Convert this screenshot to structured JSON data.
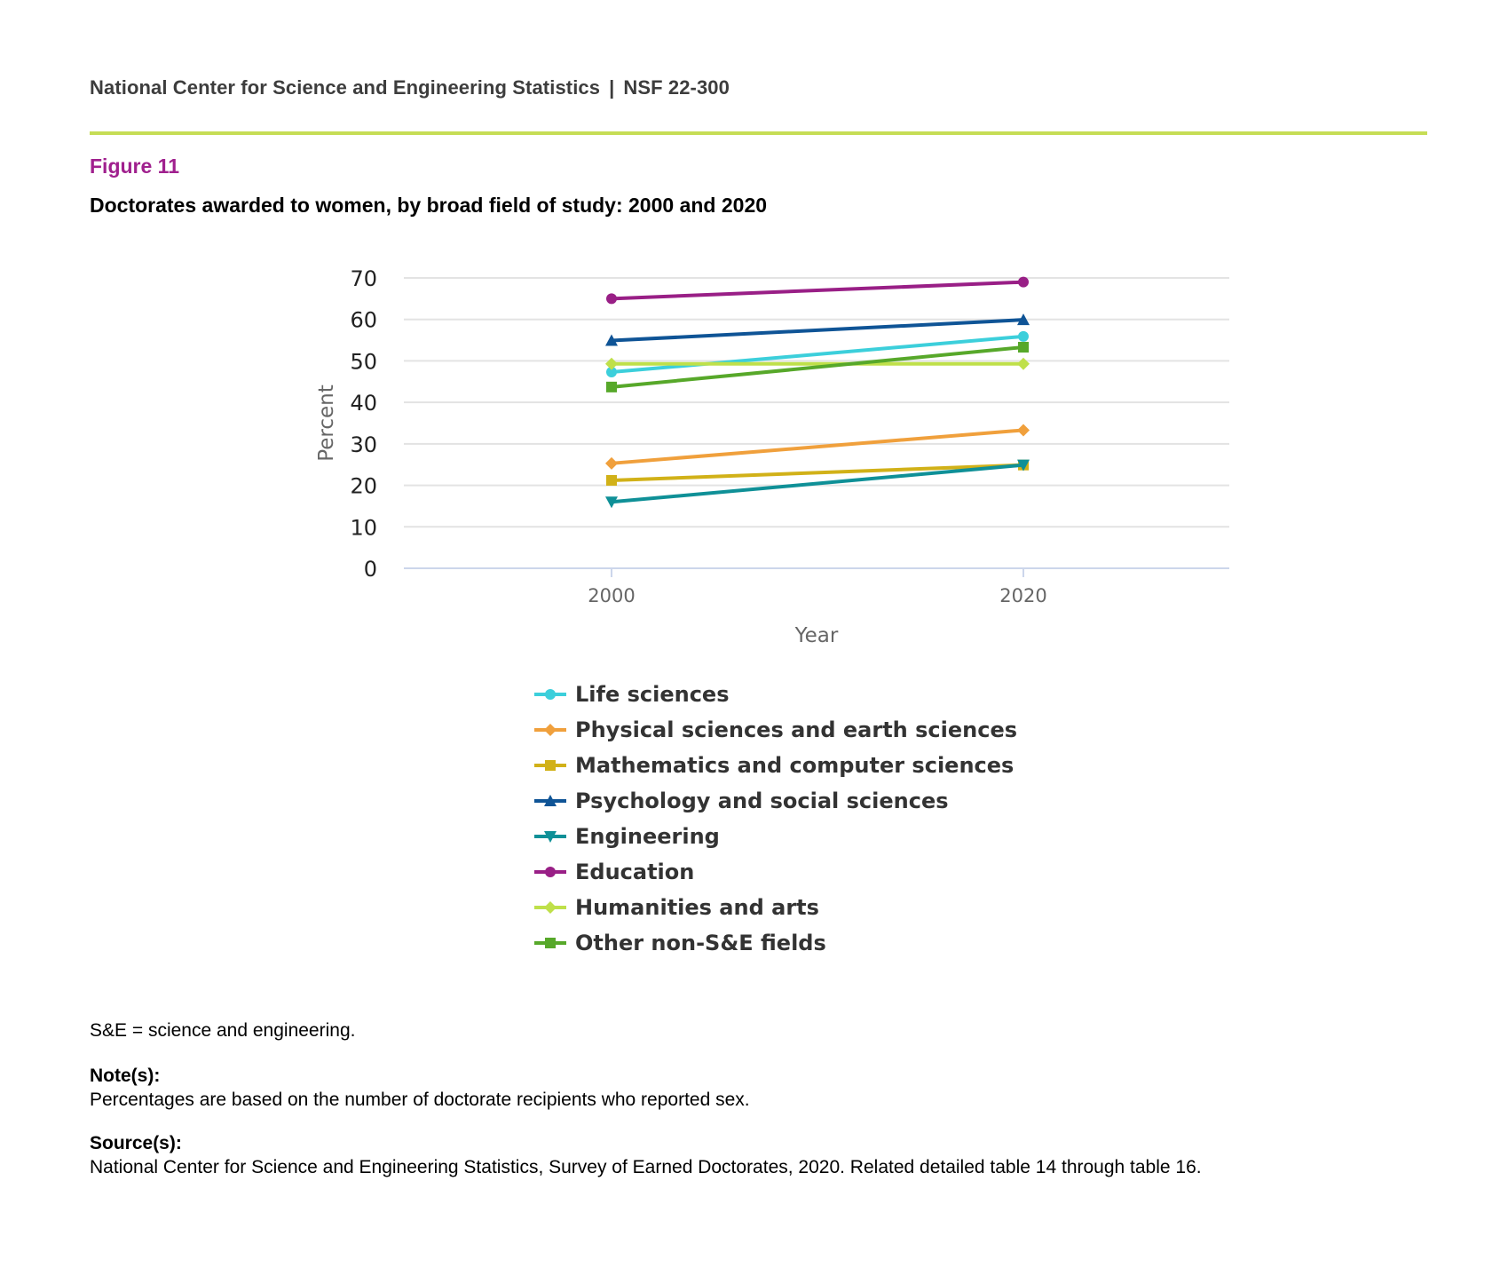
{
  "header": {
    "org": "National Center for Science and Engineering Statistics",
    "separator": "|",
    "report": "NSF 22-300"
  },
  "figure": {
    "label": "Figure 11",
    "title": "Doctorates awarded to women, by broad field of study: 2000 and 2020"
  },
  "chart_data": {
    "type": "line",
    "title": "Doctorates awarded to women, by broad field of study: 2000 and 2020",
    "xlabel": "Year",
    "ylabel": "Percent",
    "x": [
      "2000",
      "2020"
    ],
    "ylim": [
      0,
      70
    ],
    "yticks": [
      0,
      10,
      20,
      30,
      40,
      50,
      60,
      70
    ],
    "grid": true,
    "legend_position": "bottom",
    "series": [
      {
        "name": "Life sciences",
        "values": [
          47.3,
          55.9
        ],
        "color": "#3ccfdb",
        "marker": "circle"
      },
      {
        "name": "Physical sciences and earth sciences",
        "values": [
          25.3,
          33.3
        ],
        "color": "#f0a03c",
        "marker": "diamond"
      },
      {
        "name": "Mathematics and computer sciences",
        "values": [
          21.2,
          24.9
        ],
        "color": "#d1b118",
        "marker": "square"
      },
      {
        "name": "Psychology and social sciences",
        "values": [
          54.9,
          59.9
        ],
        "color": "#0f5496",
        "marker": "triangle-up"
      },
      {
        "name": "Engineering",
        "values": [
          16.0,
          24.9
        ],
        "color": "#0f9097",
        "marker": "triangle-down"
      },
      {
        "name": "Education",
        "values": [
          65.0,
          69.0
        ],
        "color": "#991f86",
        "marker": "circle"
      },
      {
        "name": "Humanities and arts",
        "values": [
          49.3,
          49.3
        ],
        "color": "#bfe04a",
        "marker": "diamond"
      },
      {
        "name": "Other non-S&E fields",
        "values": [
          43.7,
          53.3
        ],
        "color": "#57a82a",
        "marker": "square"
      }
    ]
  },
  "footnotes": {
    "abbreviation": "S&E = science and engineering.",
    "notes_heading": "Note(s):",
    "notes_text": "Percentages are based on the number of doctorate recipients who reported sex.",
    "sources_heading": "Source(s):",
    "sources_text": "National Center for Science and Engineering Statistics, Survey of Earned Doctorates, 2020. Related detailed table 14 through table 16."
  }
}
